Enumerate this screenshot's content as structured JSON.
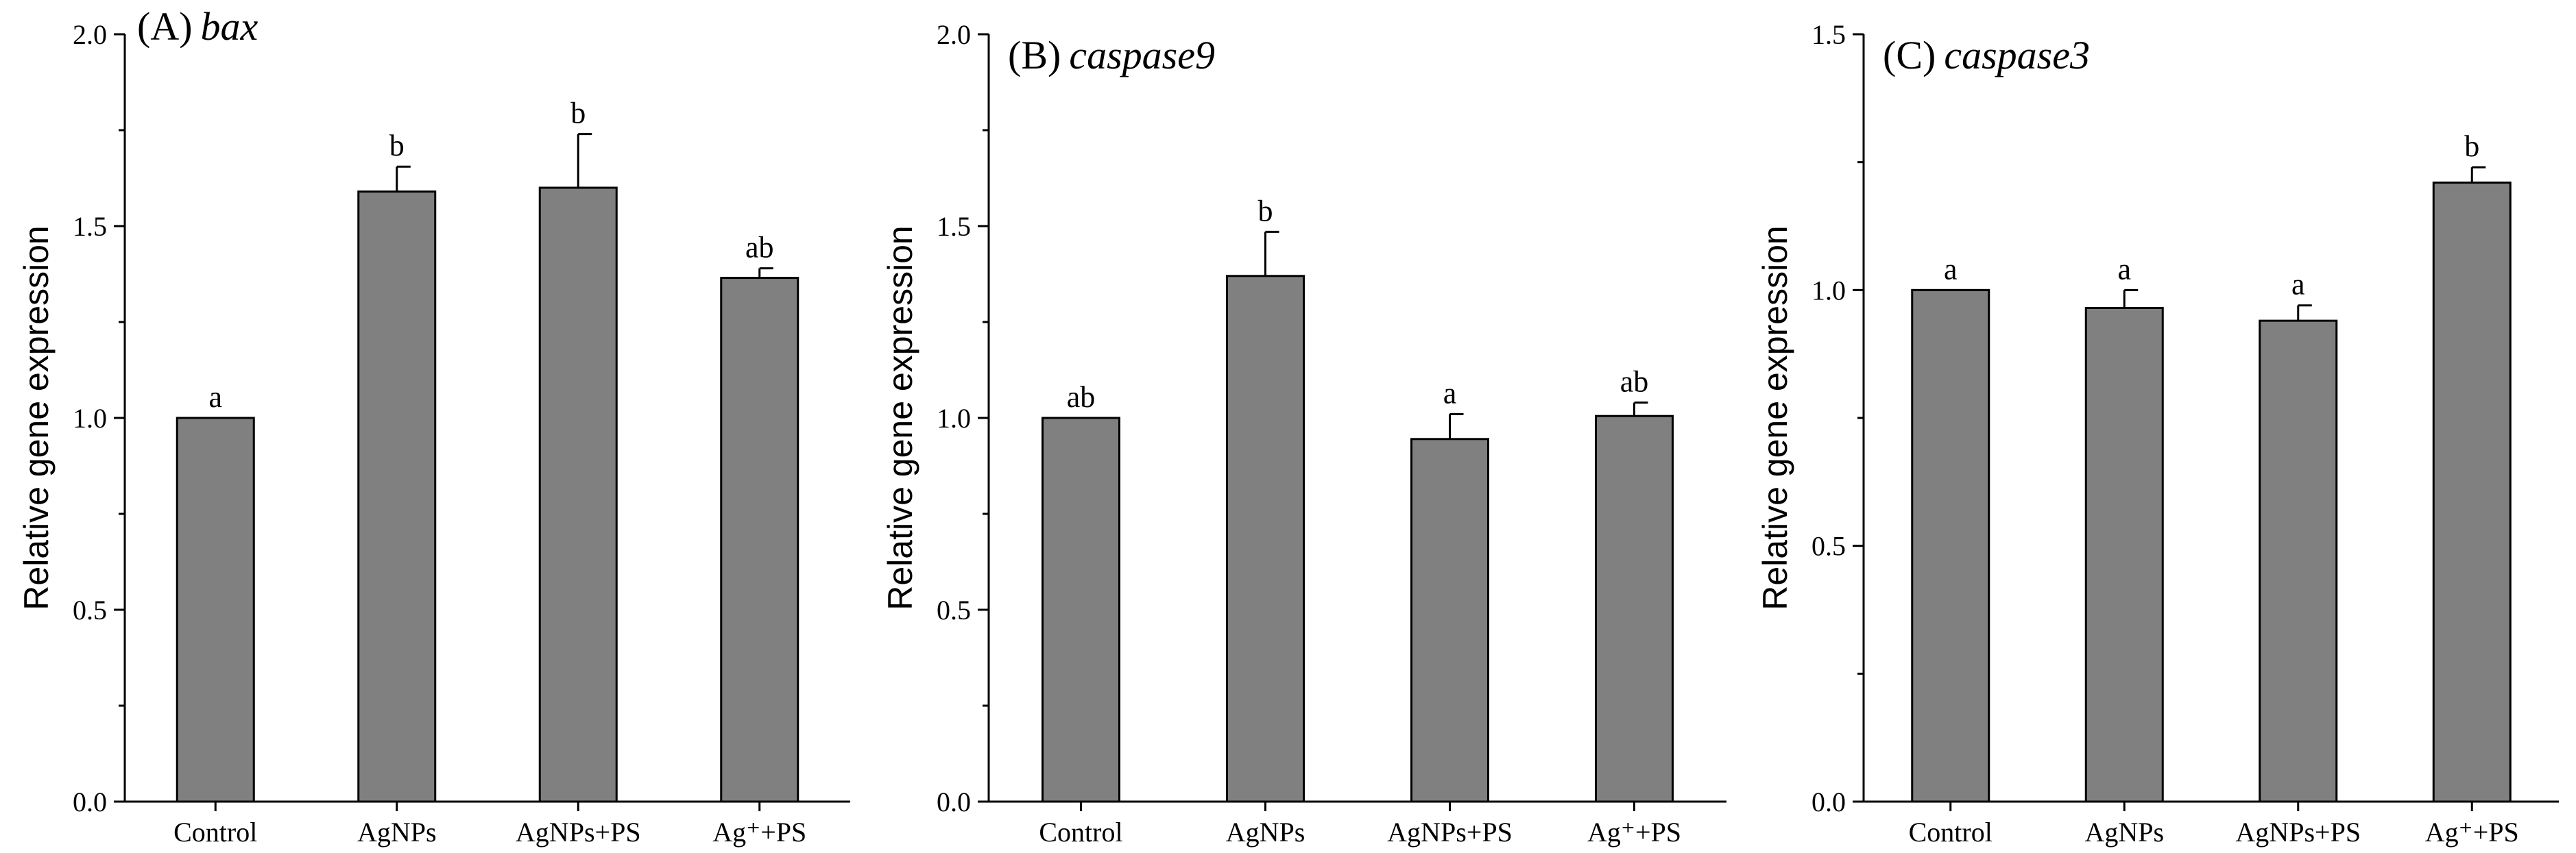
{
  "chart_data": [
    {
      "type": "bar",
      "panel": "(A)",
      "gene": "bax",
      "ylabel": "Relative gene expression",
      "ylim": [
        0,
        2.0
      ],
      "yticks": [
        0.0,
        0.5,
        1.0,
        1.5,
        2.0
      ],
      "ytick_labels": [
        "0.0",
        "0.5",
        "1.0",
        "1.5",
        "2.0"
      ],
      "categories": [
        "Control",
        "AgNPs",
        "AgNPs+PS",
        "Ag⁺+PS"
      ],
      "values": [
        1.0,
        1.59,
        1.6,
        1.365
      ],
      "errors": [
        0.0,
        0.065,
        0.14,
        0.025
      ],
      "significance": [
        "a",
        "b",
        "b",
        "ab"
      ],
      "bar_color": "#808080"
    },
    {
      "type": "bar",
      "panel": "(B)",
      "gene": "caspase9",
      "ylabel": "Relative gene expression",
      "ylim": [
        0,
        2.0
      ],
      "yticks": [
        0.0,
        0.5,
        1.0,
        1.5,
        2.0
      ],
      "ytick_labels": [
        "0.0",
        "0.5",
        "1.0",
        "1.5",
        "2.0"
      ],
      "categories": [
        "Control",
        "AgNPs",
        "AgNPs+PS",
        "Ag⁺+PS"
      ],
      "values": [
        1.0,
        1.37,
        0.945,
        1.005
      ],
      "errors": [
        0.0,
        0.115,
        0.065,
        0.035
      ],
      "significance": [
        "ab",
        "b",
        "a",
        "ab"
      ],
      "bar_color": "#808080"
    },
    {
      "type": "bar",
      "panel": "(C)",
      "gene": "caspase3",
      "ylabel": "Relative gene expression",
      "ylim": [
        0,
        1.5
      ],
      "yticks": [
        0.0,
        0.5,
        1.0,
        1.5
      ],
      "ytick_labels": [
        "0.0",
        "0.5",
        "1.0",
        "1.5"
      ],
      "categories": [
        "Control",
        "AgNPs",
        "AgNPs+PS",
        "Ag⁺+PS"
      ],
      "values": [
        1.0,
        0.965,
        0.94,
        1.21
      ],
      "errors": [
        0.0,
        0.035,
        0.03,
        0.03
      ],
      "significance": [
        "a",
        "a",
        "a",
        "b"
      ],
      "bar_color": "#808080"
    }
  ]
}
